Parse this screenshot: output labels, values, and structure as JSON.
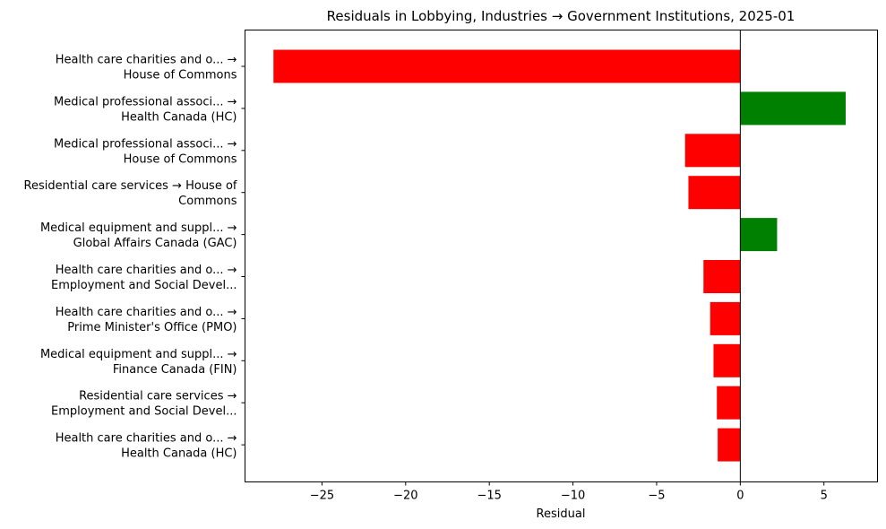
{
  "chart_data": {
    "type": "bar",
    "orientation": "horizontal",
    "title": "Residuals in Lobbying, Industries → Government Institutions, 2025-01",
    "xlabel": "Residual",
    "ylabel": "",
    "xlim": [
      -29.6,
      8.2
    ],
    "xticks": [
      -25,
      -20,
      -15,
      -10,
      -5,
      0,
      5
    ],
    "xtick_labels": [
      "−25",
      "−20",
      "−15",
      "−10",
      "−5",
      "0",
      "5"
    ],
    "grid": false,
    "legend": "none",
    "positive_color": "#008000",
    "negative_color": "#ff0000",
    "categories": [
      [
        "Health care charities and o... →",
        "House of Commons"
      ],
      [
        "Medical professional associ... →",
        "Health Canada (HC)"
      ],
      [
        "Medical professional associ... →",
        "House of Commons"
      ],
      [
        "Residential care services → House of",
        "Commons"
      ],
      [
        "Medical equipment and suppl... →",
        "Global Affairs Canada (GAC)"
      ],
      [
        "Health care charities and o... →",
        "Employment and Social Devel..."
      ],
      [
        "Health care charities and o... →",
        "Prime Minister's Office (PMO)"
      ],
      [
        "Medical equipment and suppl... →",
        "Finance Canada (FIN)"
      ],
      [
        "Residential care services →",
        "Employment and Social Devel..."
      ],
      [
        "Health care charities and o... →",
        "Health Canada (HC)"
      ]
    ],
    "values": [
      -27.9,
      6.3,
      -3.3,
      -3.1,
      2.2,
      -2.2,
      -1.8,
      -1.6,
      -1.4,
      -1.35
    ]
  }
}
